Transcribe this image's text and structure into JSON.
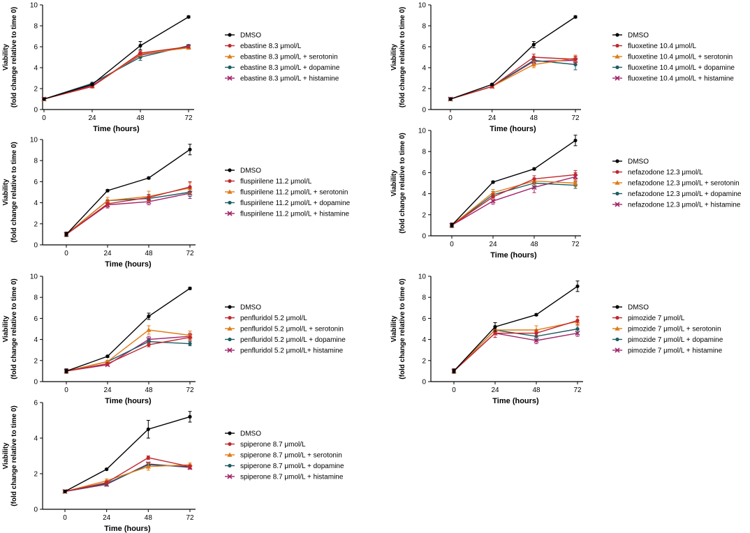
{
  "colors": {
    "DMSO": "#000000",
    "drug": "#c0272d",
    "serotonin": "#e07b16",
    "dopamine": "#1d5c63",
    "histamine": "#a3246a"
  },
  "chart_data": [
    {
      "type": "line",
      "xlabel": "Time (hours)",
      "ylabel_line1": "Viability",
      "ylabel_line2": "(fold change relative to time 0)",
      "x": [
        0,
        24,
        48,
        72
      ],
      "xticks": [
        "0",
        "24",
        "48",
        "72"
      ],
      "ylim": [
        0,
        10
      ],
      "yticks": [
        "0",
        "2",
        "4",
        "6",
        "8",
        "10"
      ],
      "legend_placement": "right",
      "series": [
        {
          "name": "DMSO",
          "values": [
            1.0,
            2.4,
            6.1,
            8.85
          ],
          "errors": [
            0.1,
            0.1,
            0.4,
            0.1
          ]
        },
        {
          "name": "ebastine 8.3 μmol/L",
          "values": [
            1.0,
            2.2,
            5.4,
            6.0
          ],
          "errors": [
            0.1,
            0.1,
            0.2,
            0.1
          ]
        },
        {
          "name": "ebastine 8.3 μmol/L + serotonin",
          "values": [
            1.0,
            2.2,
            5.3,
            5.9
          ],
          "errors": [
            0.1,
            0.1,
            0.2,
            0.1
          ]
        },
        {
          "name": "ebastine 8.3 μmol/L + dopamine",
          "values": [
            1.0,
            2.5,
            5.0,
            6.1
          ],
          "errors": [
            0.1,
            0.1,
            0.3,
            0.1
          ]
        },
        {
          "name": "ebastine 8.3 μmol/L + histamine",
          "values": [
            1.0,
            2.3,
            5.2,
            6.0
          ],
          "errors": [
            0.1,
            0.1,
            0.2,
            0.1
          ]
        }
      ]
    },
    {
      "type": "line",
      "xlabel": "Time (hours)",
      "ylabel_line1": "Viability",
      "ylabel_line2": "(fold change relative to time 0)",
      "x": [
        0,
        24,
        48,
        72
      ],
      "xticks": [
        "0",
        "24",
        "48",
        "72"
      ],
      "ylim": [
        0,
        10
      ],
      "yticks": [
        "0",
        "2",
        "4",
        "6",
        "8",
        "10"
      ],
      "legend_placement": "right",
      "series": [
        {
          "name": "DMSO",
          "values": [
            1.0,
            2.4,
            6.2,
            8.85
          ],
          "errors": [
            0.1,
            0.1,
            0.3,
            0.1
          ]
        },
        {
          "name": "fluoxetine 10.4 μmol/L",
          "values": [
            1.0,
            2.2,
            5.0,
            4.8
          ],
          "errors": [
            0.1,
            0.1,
            0.3,
            0.3
          ]
        },
        {
          "name": "fluoxetine 10.4 μmol/L + serotonin",
          "values": [
            1.0,
            2.2,
            4.3,
            4.9
          ],
          "errors": [
            0.1,
            0.1,
            0.3,
            0.3
          ]
        },
        {
          "name": "fluoxetine 10.4 μmol/L + dopamine",
          "values": [
            1.0,
            2.2,
            4.7,
            4.3
          ],
          "errors": [
            0.1,
            0.1,
            0.3,
            0.5
          ]
        },
        {
          "name": "fluoxetine 10.4 μmol/L + histamine",
          "values": [
            1.0,
            2.2,
            4.6,
            4.7
          ],
          "errors": [
            0.1,
            0.1,
            0.3,
            0.3
          ]
        }
      ]
    },
    {
      "type": "line",
      "xlabel": "Time (hours)",
      "ylabel_line1": "Viability",
      "ylabel_line2": "(fold change relative to time 0)",
      "x": [
        0,
        24,
        48,
        72
      ],
      "xticks": [
        "0",
        "24",
        "48",
        "72"
      ],
      "ylim": [
        0,
        10
      ],
      "yticks": [
        "0",
        "2",
        "4",
        "6",
        "8",
        "10"
      ],
      "legend_placement": "right",
      "series": [
        {
          "name": "DMSO",
          "values": [
            1.0,
            5.15,
            6.35,
            9.05
          ],
          "errors": [
            0.2,
            0.1,
            0.1,
            0.5
          ]
        },
        {
          "name": "fluspirilene 11.2 μmol/L",
          "values": [
            1.0,
            3.9,
            4.5,
            5.5
          ],
          "errors": [
            0.2,
            0.3,
            0.3,
            0.5
          ]
        },
        {
          "name": "fluspirilene 11.2 μmol/L + serotonin",
          "values": [
            1.0,
            4.2,
            4.6,
            5.4
          ],
          "errors": [
            0.2,
            0.3,
            0.5,
            0.5
          ]
        },
        {
          "name": "fluspirilene 11.2 μmol/L + dopamine",
          "values": [
            1.0,
            4.2,
            4.4,
            5.0
          ],
          "errors": [
            0.2,
            0.3,
            0.3,
            0.4
          ]
        },
        {
          "name": "fluspirilene 11.2 μmol/L + histamine",
          "values": [
            1.0,
            3.8,
            4.1,
            4.9
          ],
          "errors": [
            0.2,
            0.3,
            0.3,
            0.5
          ]
        }
      ]
    },
    {
      "type": "line",
      "xlabel": "Time (hours)",
      "ylabel_line1": "Viability",
      "ylabel_line2": "(fold change relative to time 0)",
      "x": [
        0,
        24,
        48,
        72
      ],
      "xticks": [
        "0",
        "24",
        "48",
        "72"
      ],
      "ylim": [
        0,
        10
      ],
      "yticks": [
        "0",
        "2",
        "4",
        "6",
        "8",
        "10"
      ],
      "legend_placement": "right",
      "series": [
        {
          "name": "DMSO",
          "values": [
            1.0,
            5.1,
            6.35,
            9.05
          ],
          "errors": [
            0.2,
            0.1,
            0.1,
            0.5
          ]
        },
        {
          "name": "nefazodone 12.3 μmol/L",
          "values": [
            1.0,
            3.7,
            5.4,
            5.8
          ],
          "errors": [
            0.2,
            0.3,
            0.3,
            0.4
          ]
        },
        {
          "name": "nefazodone 12.3 μmol/L + serotonin",
          "values": [
            1.0,
            4.1,
            5.2,
            5.0
          ],
          "errors": [
            0.2,
            0.3,
            0.3,
            0.3
          ]
        },
        {
          "name": "nefazodone 12.3 μmol/L + dopamine",
          "values": [
            1.0,
            3.9,
            5.0,
            4.8
          ],
          "errors": [
            0.2,
            0.3,
            0.3,
            0.3
          ]
        },
        {
          "name": "nefazodone 12.3 μmol/L + histamine",
          "values": [
            1.0,
            3.3,
            4.6,
            5.6
          ],
          "errors": [
            0.2,
            0.3,
            0.5,
            0.4
          ]
        }
      ]
    },
    {
      "type": "line",
      "xlabel": "Time (hours)",
      "ylabel_line1": "Viability",
      "ylabel_line2": "(fold change relative to time 0)",
      "x": [
        0,
        24,
        48,
        72
      ],
      "xticks": [
        "0",
        "24",
        "48",
        "72"
      ],
      "ylim": [
        0,
        10
      ],
      "yticks": [
        "0",
        "2",
        "4",
        "6",
        "8",
        "10"
      ],
      "legend_placement": "right",
      "series": [
        {
          "name": "DMSO",
          "values": [
            1.0,
            2.4,
            6.2,
            8.85
          ],
          "errors": [
            0.2,
            0.1,
            0.3,
            0.1
          ]
        },
        {
          "name": "penfluridol 5.2 μmol/L",
          "values": [
            1.0,
            1.7,
            3.5,
            4.2
          ],
          "errors": [
            0.2,
            0.1,
            0.2,
            0.3
          ]
        },
        {
          "name": "penfluridol 5.2 μmol/L + serotonin",
          "values": [
            1.0,
            1.9,
            4.9,
            4.4
          ],
          "errors": [
            0.2,
            0.1,
            0.4,
            0.4
          ]
        },
        {
          "name": "penfluridol 5.2 μmol/L + dopamine",
          "values": [
            1.0,
            1.9,
            3.8,
            3.6
          ],
          "errors": [
            0.2,
            0.1,
            0.2,
            0.2
          ]
        },
        {
          "name": "penfluridol 5.2 μmol/L+ histamine",
          "values": [
            1.0,
            1.6,
            4.0,
            4.3
          ],
          "errors": [
            0.2,
            0.1,
            0.3,
            0.3
          ]
        }
      ]
    },
    {
      "type": "line",
      "xlabel": "Time (hours)",
      "ylabel_line1": "Viability",
      "ylabel_line2": "(fold change relative to time 0)",
      "x": [
        0,
        24,
        48,
        72
      ],
      "xticks": [
        "0",
        "24",
        "48",
        "72"
      ],
      "ylim": [
        0,
        10
      ],
      "yticks": [
        "0",
        "2",
        "4",
        "6",
        "8",
        "10"
      ],
      "legend_placement": "right",
      "series": [
        {
          "name": "DMSO",
          "values": [
            1.0,
            5.2,
            6.35,
            9.05
          ],
          "errors": [
            0.2,
            0.4,
            0.1,
            0.5
          ]
        },
        {
          "name": "pimozide 7 μmol/L",
          "values": [
            1.0,
            4.6,
            4.6,
            5.8
          ],
          "errors": [
            0.2,
            0.4,
            0.3,
            0.4
          ]
        },
        {
          "name": "pimozide 7 μmol/L + serotonin",
          "values": [
            1.0,
            4.9,
            4.9,
            5.7
          ],
          "errors": [
            0.2,
            0.4,
            0.4,
            0.4
          ]
        },
        {
          "name": "pimozide 7 μmol/L + dopamine",
          "values": [
            1.0,
            4.9,
            4.3,
            5.0
          ],
          "errors": [
            0.2,
            0.4,
            0.3,
            0.3
          ]
        },
        {
          "name": "pimozide 7 μmol/L + histamine",
          "values": [
            1.0,
            4.6,
            3.9,
            4.6
          ],
          "errors": [
            0.2,
            0.4,
            0.3,
            0.3
          ]
        }
      ]
    },
    {
      "type": "line",
      "xlabel": "Time (hours)",
      "ylabel_line1": "Viability",
      "ylabel_line2": "(fold change relative to time 0)",
      "x": [
        0,
        24,
        48,
        72
      ],
      "xticks": [
        "0",
        "24",
        "48",
        "72"
      ],
      "ylim": [
        0,
        6
      ],
      "yticks": [
        "0",
        "2",
        "4",
        "6"
      ],
      "legend_placement": "right",
      "series": [
        {
          "name": "DMSO",
          "values": [
            1.0,
            2.25,
            4.5,
            5.2
          ],
          "errors": [
            0.05,
            0.05,
            0.5,
            0.3
          ]
        },
        {
          "name": "spiperone 8.7 μmol/L",
          "values": [
            1.0,
            1.5,
            2.9,
            2.4
          ],
          "errors": [
            0.05,
            0.1,
            0.1,
            0.1
          ]
        },
        {
          "name": "spiperone 8.7 μmol/L + serotonin",
          "values": [
            1.0,
            1.6,
            2.4,
            2.5
          ],
          "errors": [
            0.05,
            0.1,
            0.2,
            0.1
          ]
        },
        {
          "name": "spiperone 8.7 μmol/L + dopamine",
          "values": [
            1.0,
            1.45,
            2.5,
            2.4
          ],
          "errors": [
            0.05,
            0.1,
            0.1,
            0.1
          ]
        },
        {
          "name": "spiperone 8.7 μmol/L + histamine",
          "values": [
            1.0,
            1.4,
            2.55,
            2.35
          ],
          "errors": [
            0.05,
            0.1,
            0.1,
            0.1
          ]
        }
      ]
    }
  ]
}
